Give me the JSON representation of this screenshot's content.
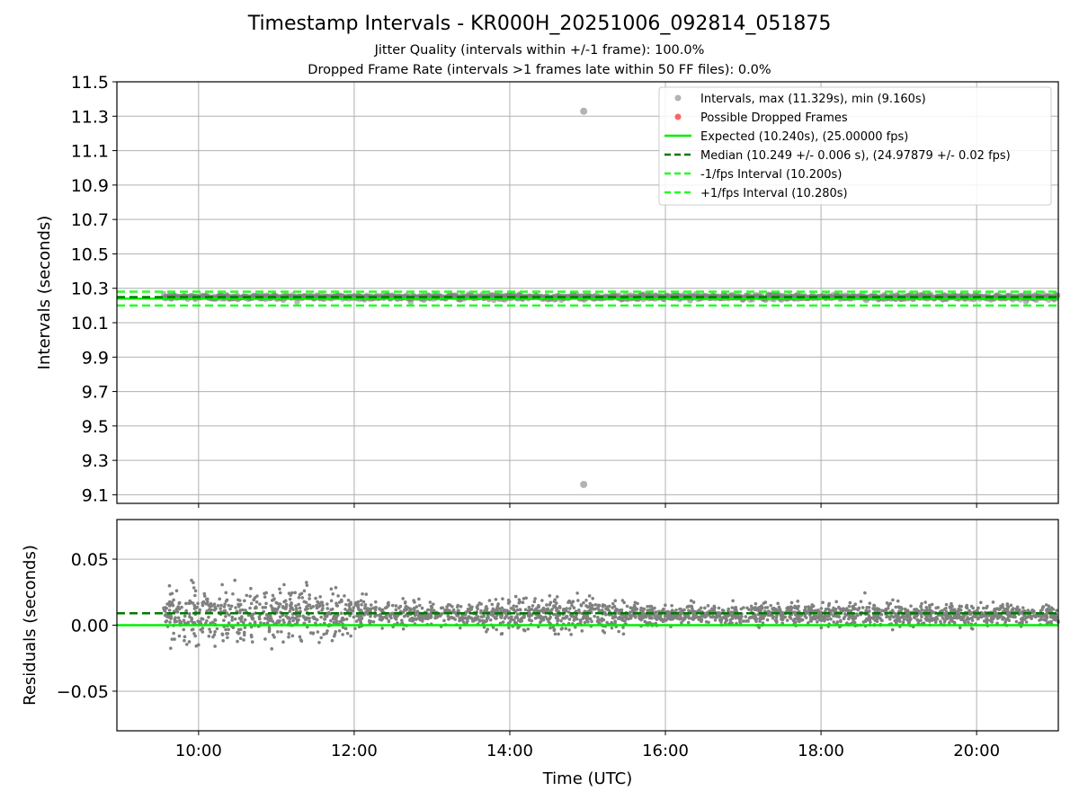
{
  "title": "Timestamp Intervals - KR000H_20251006_092814_051875",
  "subtitle_1": "Jitter Quality (intervals within +/-1 frame): 100.0%",
  "subtitle_2": "Dropped Frame Rate (intervals >1 frames late within 50 FF files): 0.0%",
  "colors": {
    "points": "#808080",
    "dropped": "#ff0000",
    "expected": "#00ee00",
    "median": "#007a00",
    "interval_lines": "#22ff22",
    "grid": "#b0b0b0"
  },
  "chart_data": [
    {
      "type": "scatter",
      "ylabel": "Intervals (seconds)",
      "xlim_hours": [
        8.95,
        21.05
      ],
      "ylim": [
        9.05,
        11.5
      ],
      "yticks": [
        9.1,
        9.3,
        9.5,
        9.7,
        9.9,
        10.1,
        10.3,
        10.5,
        10.7,
        10.9,
        11.1,
        11.3,
        11.5
      ],
      "ytick_labels": [
        "9.1",
        "9.3",
        "9.5",
        "9.7",
        "9.9",
        "10.1",
        "10.3",
        "10.5",
        "10.7",
        "10.9",
        "11.1",
        "11.3",
        "11.5"
      ],
      "xticks_hours": [
        10,
        12,
        14,
        16,
        18,
        20
      ],
      "data_range_hours": [
        9.55,
        21.05
      ],
      "grid": true,
      "legend_position": "top-right",
      "legend": [
        {
          "label": "Intervals, max (11.329s), min (9.160s)",
          "kind": "marker",
          "color": "#808080"
        },
        {
          "label": "Possible Dropped Frames",
          "kind": "marker",
          "color": "#ff0000"
        },
        {
          "label": "Expected (10.240s), (25.00000 fps)",
          "kind": "solid",
          "color": "#00ee00"
        },
        {
          "label": "Median (10.249 +/- 0.006 s), (24.97879 +/- 0.02 fps)",
          "kind": "dashed",
          "color": "#007a00"
        },
        {
          "label": "-1/fps Interval (10.200s)",
          "kind": "dashed",
          "color": "#22ff22"
        },
        {
          "label": "+1/fps Interval (10.280s)",
          "kind": "dashed",
          "color": "#22ff22"
        }
      ],
      "lines": {
        "expected": 10.24,
        "median": 10.249,
        "minus_interval": 10.2,
        "plus_interval": 10.28
      },
      "outliers": [
        {
          "x_hours": 14.95,
          "y": 11.329
        },
        {
          "x_hours": 14.95,
          "y": 9.16
        }
      ]
    },
    {
      "type": "scatter",
      "ylabel": "Residuals (seconds)",
      "xlabel": "Time (UTC)",
      "xlim_hours": [
        8.95,
        21.05
      ],
      "ylim": [
        -0.08,
        0.08
      ],
      "yticks": [
        -0.05,
        0.0,
        0.05
      ],
      "ytick_labels": [
        "−0.05",
        "0.00",
        "0.05"
      ],
      "xticks_hours": [
        10,
        12,
        14,
        16,
        18,
        20
      ],
      "xtick_labels": [
        "10:00",
        "12:00",
        "14:00",
        "16:00",
        "18:00",
        "20:00"
      ],
      "grid": true,
      "lines": {
        "zero": 0.0,
        "median_offset": 0.009
      },
      "residual_center": 0.008,
      "residual_spread_profile": [
        {
          "x_hours": 9.6,
          "spread": 0.02
        },
        {
          "x_hours": 11.2,
          "spread": 0.02
        },
        {
          "x_hours": 12.2,
          "spread": 0.012
        },
        {
          "x_hours": 13.0,
          "spread": 0.008
        },
        {
          "x_hours": 14.9,
          "spread": 0.014
        },
        {
          "x_hours": 16.0,
          "spread": 0.006
        },
        {
          "x_hours": 18.0,
          "spread": 0.009
        },
        {
          "x_hours": 21.0,
          "spread": 0.007
        }
      ]
    }
  ]
}
